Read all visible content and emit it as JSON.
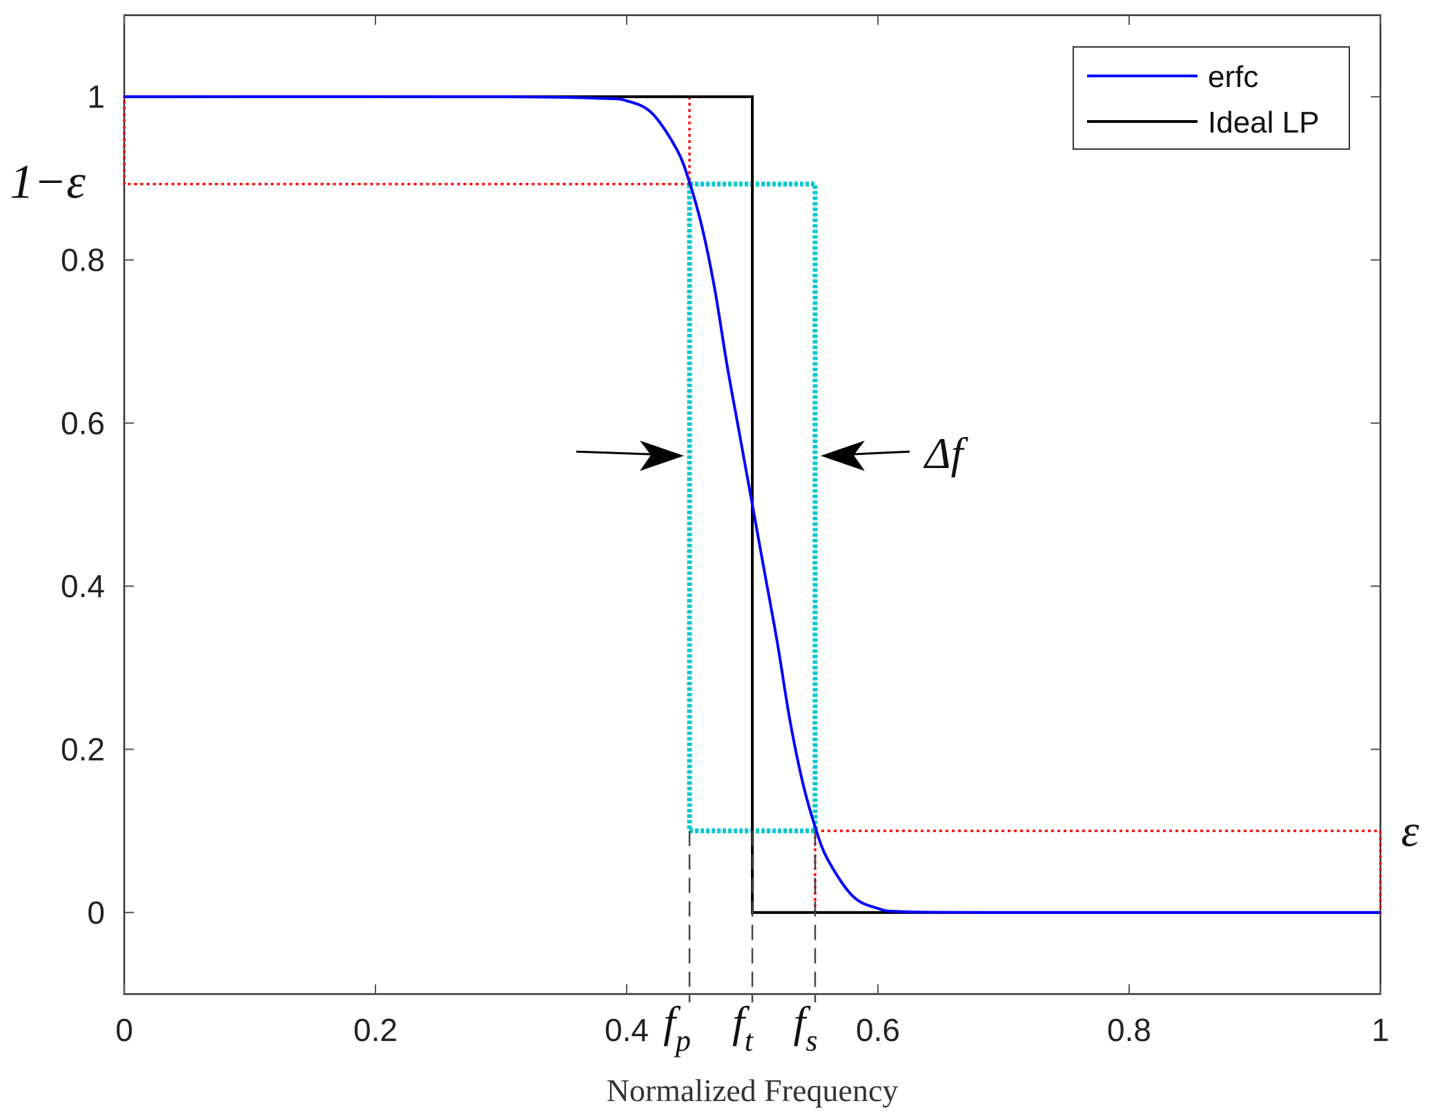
{
  "chart_data": {
    "type": "line",
    "xlabel": "Normalized Frequency",
    "ylabel": "",
    "xlim": [
      0,
      1
    ],
    "ylim": [
      -0.1,
      1.1
    ],
    "x_ticks": [
      {
        "value": 0,
        "label": "0"
      },
      {
        "value": 0.2,
        "label": "0.2"
      },
      {
        "value": 0.4,
        "label": "0.4"
      },
      {
        "value": 0.6,
        "label": "0.6"
      },
      {
        "value": 0.8,
        "label": "0.8"
      },
      {
        "value": 1,
        "label": "1"
      }
    ],
    "y_ticks": [
      {
        "value": 0,
        "label": "0"
      },
      {
        "value": 0.2,
        "label": "0.2"
      },
      {
        "value": 0.4,
        "label": "0.4"
      },
      {
        "value": 0.6,
        "label": "0.6"
      },
      {
        "value": 0.8,
        "label": "0.8"
      },
      {
        "value": 1,
        "label": "1"
      }
    ],
    "grid": false,
    "legend": {
      "position": "top-right",
      "entries": [
        {
          "name": "erfc",
          "color": "#0000ff"
        },
        {
          "name": "Ideal LP",
          "color": "#000000"
        }
      ]
    },
    "series": [
      {
        "name": "erfc",
        "color": "#0000ff",
        "x": [
          0,
          0.3,
          0.38,
          0.4,
          0.42,
          0.44,
          0.45,
          0.46,
          0.47,
          0.48,
          0.49,
          0.5,
          0.51,
          0.52,
          0.53,
          0.54,
          0.55,
          0.56,
          0.58,
          0.6,
          0.62,
          0.7,
          1.0
        ],
        "y": [
          1,
          1,
          0.998,
          0.995,
          0.98,
          0.935,
          0.895,
          0.84,
          0.765,
          0.67,
          0.585,
          0.5,
          0.415,
          0.33,
          0.235,
          0.16,
          0.105,
          0.065,
          0.02,
          0.005,
          0.001,
          0,
          0
        ]
      },
      {
        "name": "Ideal LP",
        "color": "#000000",
        "x": [
          0,
          0.5,
          0.5,
          1
        ],
        "y": [
          1,
          1,
          0,
          0
        ]
      }
    ],
    "regions": [
      {
        "kind": "passband-tolerance",
        "color": "#ff0000",
        "x": [
          0,
          0.45
        ],
        "y": [
          0.893,
          1
        ]
      },
      {
        "kind": "stopband-tolerance",
        "color": "#ff0000",
        "x": [
          0.55,
          1
        ],
        "y": [
          0,
          0.1
        ]
      },
      {
        "kind": "transition-band",
        "color": "#00c8d0",
        "x": [
          0.45,
          0.55
        ],
        "y": [
          0.1,
          0.893
        ]
      }
    ],
    "annotations": {
      "one_minus_epsilon": {
        "text": "1−ε",
        "y": 0.893
      },
      "epsilon": {
        "text": "ε",
        "y": 0.1
      },
      "delta_f": {
        "text": "Δf",
        "y": 0.565
      },
      "f_p": {
        "base": "f",
        "sub": "p",
        "x": 0.45
      },
      "f_t": {
        "base": "f",
        "sub": "t",
        "x": 0.5
      },
      "f_s": {
        "base": "f",
        "sub": "s",
        "x": 0.55
      }
    }
  }
}
